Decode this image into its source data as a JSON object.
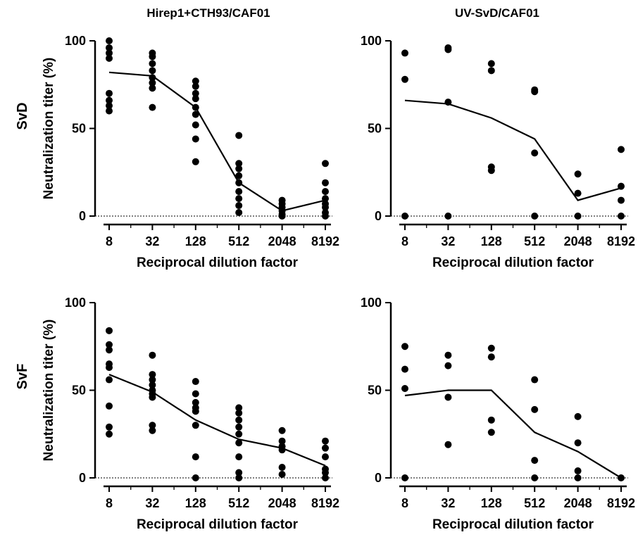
{
  "figure": {
    "column_titles": [
      "Hirep1+CTH93/CAF01",
      "UV-SvD/CAF01"
    ],
    "row_labels": [
      "SvD",
      "SvF"
    ]
  },
  "chart_data": [
    {
      "type": "scatter",
      "panel": "Hirep1+CTH93/CAF01 - SvD",
      "title": "Hirep1+CTH93/CAF01",
      "row_label": "SvD",
      "xlabel": "Reciprocal dilution factor",
      "ylabel": "Neutralization titer (%)",
      "x_scale": "log2",
      "x_ticks": [
        8,
        32,
        128,
        512,
        2048,
        8192
      ],
      "y_ticks": [
        0,
        50,
        100
      ],
      "ylim": [
        0,
        100
      ],
      "points": [
        [
          8,
          100
        ],
        [
          8,
          96
        ],
        [
          8,
          93
        ],
        [
          8,
          90
        ],
        [
          8,
          70
        ],
        [
          8,
          66
        ],
        [
          8,
          63
        ],
        [
          8,
          60
        ],
        [
          32,
          93
        ],
        [
          32,
          91
        ],
        [
          32,
          87
        ],
        [
          32,
          83
        ],
        [
          32,
          79
        ],
        [
          32,
          76
        ],
        [
          32,
          73
        ],
        [
          32,
          62
        ],
        [
          128,
          77
        ],
        [
          128,
          74
        ],
        [
          128,
          70
        ],
        [
          128,
          67
        ],
        [
          128,
          62
        ],
        [
          128,
          58
        ],
        [
          128,
          52
        ],
        [
          128,
          44
        ],
        [
          128,
          31
        ],
        [
          512,
          46
        ],
        [
          512,
          30
        ],
        [
          512,
          27
        ],
        [
          512,
          23
        ],
        [
          512,
          19
        ],
        [
          512,
          14
        ],
        [
          512,
          10
        ],
        [
          512,
          6
        ],
        [
          512,
          2
        ],
        [
          2048,
          9
        ],
        [
          2048,
          7
        ],
        [
          2048,
          5
        ],
        [
          2048,
          3
        ],
        [
          2048,
          1
        ],
        [
          2048,
          0
        ],
        [
          8192,
          30
        ],
        [
          8192,
          19
        ],
        [
          8192,
          14
        ],
        [
          8192,
          10
        ],
        [
          8192,
          7
        ],
        [
          8192,
          5
        ],
        [
          8192,
          2
        ],
        [
          8192,
          0
        ]
      ],
      "mean": {
        "x": [
          8,
          32,
          128,
          512,
          2048,
          8192
        ],
        "y": [
          82,
          80,
          62,
          19,
          3,
          9
        ]
      },
      "show_labels": {
        "title": true,
        "row": true,
        "ylabel": true
      }
    },
    {
      "type": "scatter",
      "panel": "UV-SvD/CAF01 - SvD",
      "title": "UV-SvD/CAF01",
      "row_label": "SvD",
      "xlabel": "Reciprocal dilution factor",
      "ylabel": "",
      "x_scale": "log2",
      "x_ticks": [
        8,
        32,
        128,
        512,
        2048,
        8192
      ],
      "y_ticks": [
        0,
        50,
        100
      ],
      "ylim": [
        0,
        100
      ],
      "points": [
        [
          8,
          93
        ],
        [
          8,
          78
        ],
        [
          8,
          0
        ],
        [
          32,
          96
        ],
        [
          32,
          95
        ],
        [
          32,
          65
        ],
        [
          32,
          0
        ],
        [
          128,
          87
        ],
        [
          128,
          83
        ],
        [
          128,
          28
        ],
        [
          128,
          26
        ],
        [
          512,
          72
        ],
        [
          512,
          71
        ],
        [
          512,
          36
        ],
        [
          512,
          0
        ],
        [
          2048,
          24
        ],
        [
          2048,
          13
        ],
        [
          2048,
          0
        ],
        [
          8192,
          38
        ],
        [
          8192,
          17
        ],
        [
          8192,
          9
        ],
        [
          8192,
          0
        ]
      ],
      "mean": {
        "x": [
          8,
          32,
          128,
          512,
          2048,
          8192
        ],
        "y": [
          66,
          64,
          56,
          44,
          9,
          16
        ]
      },
      "show_labels": {
        "title": true,
        "row": false,
        "ylabel": false
      }
    },
    {
      "type": "scatter",
      "panel": "Hirep1+CTH93/CAF01 - SvF",
      "title": "",
      "row_label": "SvF",
      "xlabel": "Reciprocal dilution factor",
      "ylabel": "Neutralization titer (%)",
      "x_scale": "log2",
      "x_ticks": [
        8,
        32,
        128,
        512,
        2048,
        8192
      ],
      "y_ticks": [
        0,
        50,
        100
      ],
      "ylim": [
        0,
        100
      ],
      "points": [
        [
          8,
          84
        ],
        [
          8,
          76
        ],
        [
          8,
          73
        ],
        [
          8,
          65
        ],
        [
          8,
          63
        ],
        [
          8,
          56
        ],
        [
          8,
          41
        ],
        [
          8,
          29
        ],
        [
          8,
          25
        ],
        [
          32,
          70
        ],
        [
          32,
          59
        ],
        [
          32,
          56
        ],
        [
          32,
          53
        ],
        [
          32,
          50
        ],
        [
          32,
          48
        ],
        [
          32,
          46
        ],
        [
          32,
          30
        ],
        [
          32,
          27
        ],
        [
          128,
          55
        ],
        [
          128,
          48
        ],
        [
          128,
          43
        ],
        [
          128,
          40
        ],
        [
          128,
          38
        ],
        [
          128,
          30
        ],
        [
          128,
          12
        ],
        [
          128,
          0
        ],
        [
          512,
          40
        ],
        [
          512,
          37
        ],
        [
          512,
          33
        ],
        [
          512,
          29
        ],
        [
          512,
          25
        ],
        [
          512,
          20
        ],
        [
          512,
          12
        ],
        [
          512,
          3
        ],
        [
          512,
          0
        ],
        [
          2048,
          27
        ],
        [
          2048,
          21
        ],
        [
          2048,
          18
        ],
        [
          2048,
          16
        ],
        [
          2048,
          6
        ],
        [
          2048,
          2
        ],
        [
          8192,
          21
        ],
        [
          8192,
          17
        ],
        [
          8192,
          12
        ],
        [
          8192,
          5
        ],
        [
          8192,
          3
        ],
        [
          8192,
          0
        ]
      ],
      "mean": {
        "x": [
          8,
          32,
          128,
          512,
          2048,
          8192
        ],
        "y": [
          59,
          49,
          33,
          22,
          17,
          7
        ]
      },
      "show_labels": {
        "title": false,
        "row": true,
        "ylabel": true
      }
    },
    {
      "type": "scatter",
      "panel": "UV-SvD/CAF01 - SvF",
      "title": "",
      "row_label": "SvF",
      "xlabel": "Reciprocal dilution factor",
      "ylabel": "",
      "x_scale": "log2",
      "x_ticks": [
        8,
        32,
        128,
        512,
        2048,
        8192
      ],
      "y_ticks": [
        0,
        50,
        100
      ],
      "ylim": [
        0,
        100
      ],
      "points": [
        [
          8,
          75
        ],
        [
          8,
          62
        ],
        [
          8,
          51
        ],
        [
          8,
          0
        ],
        [
          32,
          70
        ],
        [
          32,
          64
        ],
        [
          32,
          46
        ],
        [
          32,
          19
        ],
        [
          128,
          74
        ],
        [
          128,
          69
        ],
        [
          128,
          33
        ],
        [
          128,
          26
        ],
        [
          512,
          56
        ],
        [
          512,
          39
        ],
        [
          512,
          10
        ],
        [
          512,
          0
        ],
        [
          2048,
          35
        ],
        [
          2048,
          20
        ],
        [
          2048,
          4
        ],
        [
          2048,
          0
        ],
        [
          8192,
          0
        ]
      ],
      "mean": {
        "x": [
          8,
          32,
          128,
          512,
          2048,
          8192
        ],
        "y": [
          47,
          50,
          50,
          26,
          15,
          0
        ]
      },
      "show_labels": {
        "title": false,
        "row": false,
        "ylabel": false
      }
    }
  ]
}
